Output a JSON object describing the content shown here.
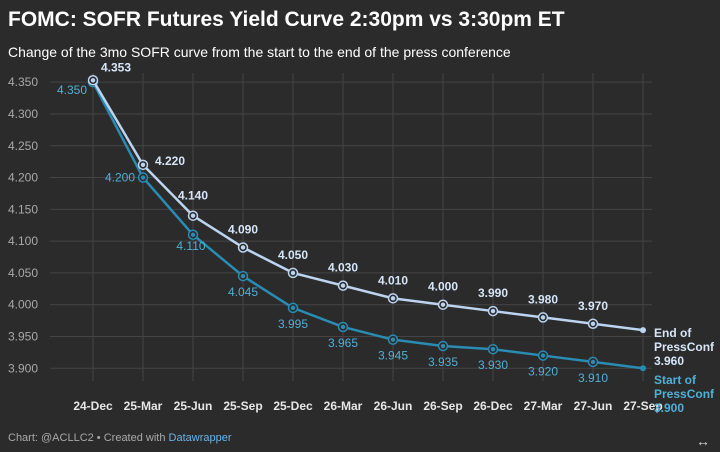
{
  "header": {
    "title": "FOMC: SOFR Futures Yield Curve 2:30pm vs 3:30pm ET",
    "subtitle": "Change of the 3mo SOFR curve from the start to the end of the press conference"
  },
  "footer": {
    "credit": "Chart: @ACLLC2 • Created with ",
    "tool": "Datawrapper",
    "expand_glyph": "↔"
  },
  "colors": {
    "background": "#2b2b2b",
    "grid": "#444444",
    "tick_label": "#a8a8a8",
    "end_series": "#bcd4f0",
    "end_series_label": "#d6e6f8",
    "start_series": "#2a8bb3",
    "start_series_label": "#4fb0d8"
  },
  "chart_data": {
    "type": "line",
    "title": "FOMC: SOFR Futures Yield Curve 2:30pm vs 3:30pm ET",
    "subtitle": "Change of the 3mo SOFR curve from the start to the end of the press conference",
    "xlabel": "",
    "ylabel": "",
    "categories": [
      "24-Dec",
      "25-Mar",
      "25-Jun",
      "25-Sep",
      "25-Dec",
      "26-Mar",
      "26-Jun",
      "26-Sep",
      "26-Dec",
      "27-Mar",
      "27-Jun",
      "27-Sep"
    ],
    "ylim": [
      3.88,
      4.355
    ],
    "yticks": [
      "4.350",
      "4.300",
      "4.250",
      "4.200",
      "4.150",
      "4.100",
      "4.050",
      "4.000",
      "3.950",
      "3.900"
    ],
    "series": [
      {
        "name": "End of PressConf",
        "label_lines": [
          "End of",
          "PressConf"
        ],
        "values": [
          4.353,
          4.22,
          4.14,
          4.09,
          4.05,
          4.03,
          4.01,
          4.0,
          3.99,
          3.98,
          3.97,
          3.96
        ],
        "data_labels": [
          "4.353",
          "4.220",
          "4.140",
          "4.090",
          "4.050",
          "4.030",
          "4.010",
          "4.000",
          "3.990",
          "3.980",
          "3.970",
          "3.960"
        ]
      },
      {
        "name": "Start of PressConf",
        "label_lines": [
          "Start of",
          "PressConf"
        ],
        "values": [
          4.35,
          4.2,
          4.11,
          4.045,
          3.995,
          3.965,
          3.945,
          3.935,
          3.93,
          3.92,
          3.91,
          3.9
        ],
        "data_labels": [
          "4.350",
          "4.200",
          "4.110",
          "4.045",
          "3.995",
          "3.965",
          "3.945",
          "3.935",
          "3.930",
          "3.920",
          "3.910",
          "3.900"
        ]
      }
    ]
  }
}
